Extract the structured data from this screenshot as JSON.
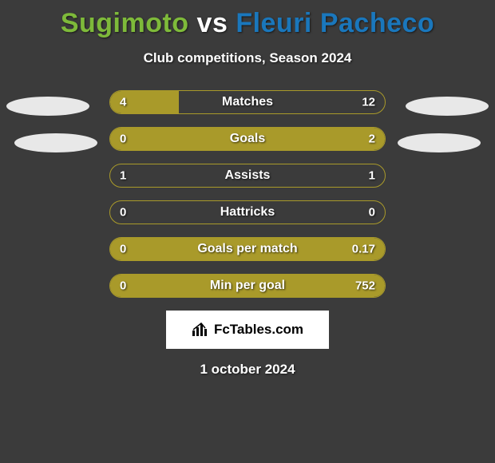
{
  "title": {
    "left": "Sugimoto",
    "vs": "vs",
    "right": "Fleuri Pacheco",
    "left_color": "#7eba3a",
    "right_color": "#1a77bc",
    "fontsize": 34
  },
  "subtitle": "Club competitions, Season 2024",
  "background_color": "#3b3b3b",
  "bar_color": "#a99a2a",
  "bar_border_color": "#a99a2a",
  "bar_label_color": "#ffffff",
  "avatar_color": "#e8e8e8",
  "stats": [
    {
      "label": "Matches",
      "left_val": "4",
      "right_val": "12",
      "left_pct": 25,
      "right_pct": 0
    },
    {
      "label": "Goals",
      "left_val": "0",
      "right_val": "2",
      "left_pct": 0,
      "right_pct": 100
    },
    {
      "label": "Assists",
      "left_val": "1",
      "right_val": "1",
      "left_pct": 0,
      "right_pct": 0
    },
    {
      "label": "Hattricks",
      "left_val": "0",
      "right_val": "0",
      "left_pct": 0,
      "right_pct": 0
    },
    {
      "label": "Goals per match",
      "left_val": "0",
      "right_val": "0.17",
      "left_pct": 0,
      "right_pct": 100
    },
    {
      "label": "Min per goal",
      "left_val": "0",
      "right_val": "752",
      "left_pct": 0,
      "right_pct": 100
    }
  ],
  "footer": {
    "badge_text": "FcTables.com",
    "badge_bg": "#ffffff",
    "badge_text_color": "#000000",
    "date": "1 october 2024"
  }
}
